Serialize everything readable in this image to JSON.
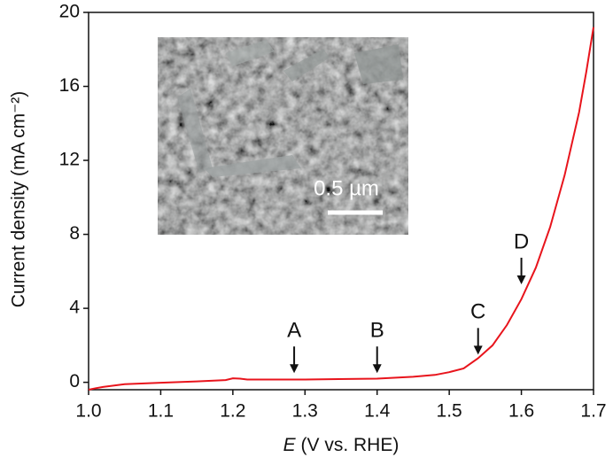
{
  "chart_data": {
    "type": "line",
    "xlabel": {
      "symbol": "E",
      "unit": "(V vs. RHE)"
    },
    "ylabel": "Current density (mA cm⁻²)",
    "x": [
      1.0,
      1.01,
      1.02,
      1.05,
      1.1,
      1.15,
      1.19,
      1.2,
      1.21,
      1.22,
      1.3,
      1.4,
      1.45,
      1.48,
      1.5,
      1.52,
      1.54,
      1.56,
      1.58,
      1.6,
      1.62,
      1.64,
      1.66,
      1.68,
      1.69,
      1.7
    ],
    "values": [
      -0.4,
      -0.32,
      -0.25,
      -0.1,
      -0.02,
      0.05,
      0.12,
      0.22,
      0.2,
      0.15,
      0.15,
      0.2,
      0.3,
      0.4,
      0.55,
      0.75,
      1.3,
      2.0,
      3.1,
      4.5,
      6.2,
      8.4,
      11.2,
      14.6,
      16.8,
      19.2
    ],
    "color": "#e8141c",
    "xlim": [
      1.0,
      1.7
    ],
    "xticks": [
      {
        "value": 1.0,
        "label": "1.0"
      },
      1.1,
      1.2,
      1.3,
      1.4,
      1.5,
      1.6,
      1.7
    ],
    "ylim": [
      -0.4,
      20
    ],
    "yticks": [
      0,
      4,
      8,
      12,
      16,
      20
    ],
    "annotations": [
      {
        "text": "A",
        "x": 1.285,
        "y": 0.5
      },
      {
        "text": "B",
        "x": 1.4,
        "y": 0.5
      },
      {
        "text": "C",
        "x": 1.54,
        "y": 1.5
      },
      {
        "text": "D",
        "x": 1.6,
        "y": 5.3
      }
    ],
    "inset_scale_bar": "0.5 µm"
  }
}
